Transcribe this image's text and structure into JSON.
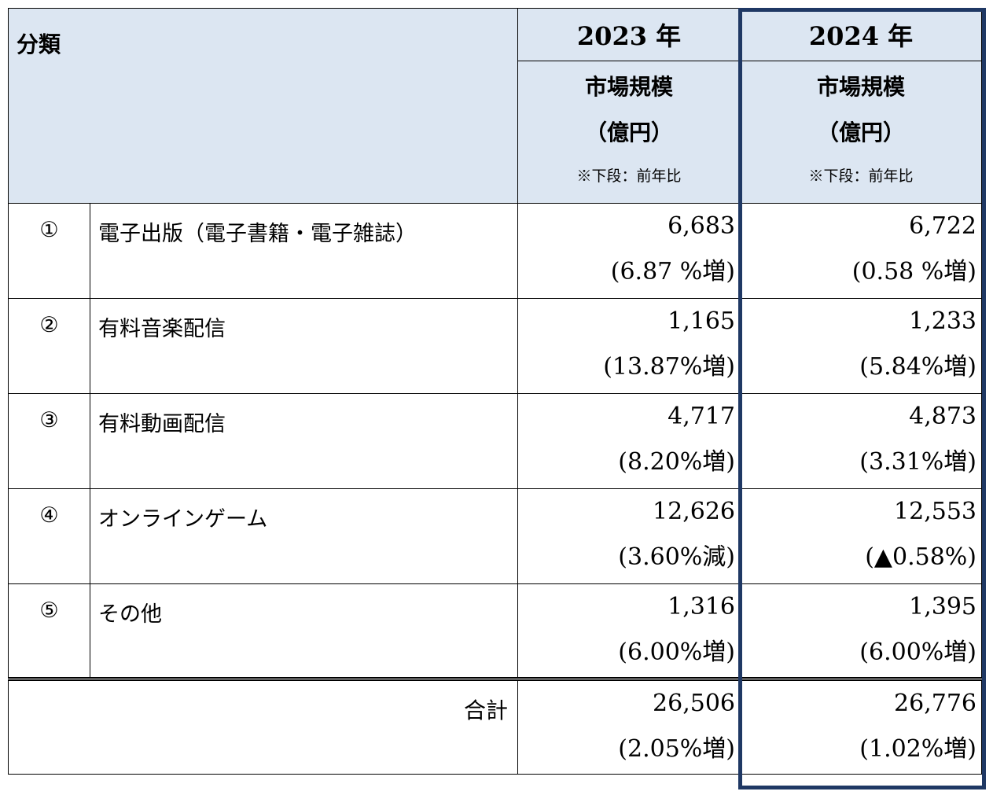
{
  "header": {
    "class_label": "分類",
    "years": [
      "2023 年",
      "2024 年"
    ],
    "metric_label": "市場規模",
    "unit_label": "（億円）",
    "note_label": "※下段：前年比"
  },
  "rows": [
    {
      "num": "①",
      "name": "電子出版（電子書籍・電子雑誌）",
      "v2023": "6,683",
      "p2023": "(6.87 %増)",
      "v2024": "6,722",
      "p2024": "(0.58 %増)"
    },
    {
      "num": "②",
      "name": "有料音楽配信",
      "v2023": "1,165",
      "p2023": "(13.87%増)",
      "v2024": "1,233",
      "p2024": "(5.84%増)"
    },
    {
      "num": "③",
      "name": "有料動画配信",
      "v2023": "4,717",
      "p2023": "(8.20%増)",
      "v2024": "4,873",
      "p2024": "(3.31%増)"
    },
    {
      "num": "④",
      "name": "オンラインゲーム",
      "v2023": "12,626",
      "p2023": "(3.60%減)",
      "v2024": "12,553",
      "p2024": "(▲0.58%)"
    },
    {
      "num": "⑤",
      "name": "その他",
      "v2023": "1,316",
      "p2023": "(6.00%増)",
      "v2024": "1,395",
      "p2024": "(6.00%増)"
    }
  ],
  "total": {
    "label": "合計",
    "v2023": "26,506",
    "p2023": "(2.05%増)",
    "v2024": "26,776",
    "p2024": "(1.02%増)"
  },
  "colors": {
    "header_bg": "#dce6f2",
    "highlight_border": "#1f3864"
  }
}
